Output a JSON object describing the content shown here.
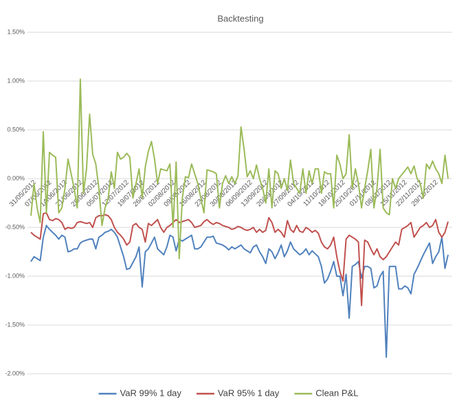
{
  "chart_data": {
    "type": "line",
    "title": "Backtesting",
    "categories": [
      "31/05/2012",
      null,
      null,
      null,
      null,
      "07/06/2012",
      null,
      null,
      null,
      null,
      "14/06/2012",
      null,
      null,
      null,
      null,
      "21/06/2012",
      null,
      null,
      null,
      null,
      "28/06/2012",
      null,
      null,
      null,
      null,
      "05/07/2012",
      null,
      null,
      null,
      null,
      "12/07/2012",
      null,
      null,
      null,
      null,
      "19/07/2012",
      null,
      null,
      null,
      null,
      "26/07/2012",
      null,
      null,
      null,
      null,
      "02/08/2012",
      null,
      null,
      null,
      null,
      "09/08/2012",
      null,
      null,
      null,
      null,
      "16/08/2012",
      null,
      null,
      null,
      null,
      "23/08/2012",
      null,
      null,
      null,
      null,
      "30/08/2012",
      null,
      null,
      null,
      null,
      "06/09/2012",
      null,
      null,
      null,
      null,
      "13/09/2012",
      null,
      null,
      null,
      null,
      "20/09/2012",
      null,
      null,
      null,
      null,
      "27/09/2012",
      null,
      null,
      null,
      null,
      "04/10/2012",
      null,
      null,
      null,
      null,
      "11/10/2012",
      null,
      null,
      null,
      null,
      "18/10/2012",
      null,
      null,
      null,
      null,
      "25/10/2012",
      null,
      null,
      null,
      null,
      "01/11/2012",
      null,
      null,
      null,
      null,
      "08/11/2012",
      null,
      null,
      null,
      null,
      "15/11/2012",
      null,
      null,
      null,
      null,
      "22/11/2012",
      null,
      null,
      null,
      null,
      "29/11/2012",
      null,
      null,
      null,
      null,
      null
    ],
    "series": [
      {
        "name": "VaR 99% 1 day",
        "color": "#4f81bd",
        "values": [
          -0.85,
          -0.8,
          -0.82,
          -0.84,
          -0.6,
          -0.48,
          -0.52,
          -0.55,
          -0.58,
          -0.62,
          -0.58,
          -0.6,
          -0.75,
          -0.74,
          -0.72,
          -0.72,
          -0.66,
          -0.64,
          -0.63,
          -0.62,
          -0.62,
          -0.72,
          -0.6,
          -0.58,
          -0.55,
          -0.54,
          -0.52,
          -0.55,
          -0.6,
          -0.7,
          -0.8,
          -0.93,
          -0.92,
          -0.86,
          -0.8,
          -0.7,
          -1.11,
          -0.75,
          -0.72,
          -0.66,
          -0.6,
          -0.72,
          -0.75,
          -0.78,
          -0.7,
          -0.58,
          -0.6,
          -0.74,
          -0.62,
          -0.64,
          -0.62,
          -0.6,
          -0.58,
          -0.72,
          -0.72,
          -0.7,
          -0.65,
          -0.6,
          -0.6,
          -0.59,
          -0.66,
          -0.67,
          -0.68,
          -0.7,
          -0.73,
          -0.7,
          -0.72,
          -0.7,
          -0.68,
          -0.72,
          -0.74,
          -0.76,
          -0.7,
          -0.68,
          -0.75,
          -0.8,
          -0.87,
          -0.72,
          -0.75,
          -0.82,
          -0.76,
          -0.68,
          -0.8,
          -0.74,
          -0.65,
          -0.72,
          -0.75,
          -0.78,
          -0.76,
          -0.72,
          -0.78,
          -0.74,
          -0.77,
          -0.8,
          -0.9,
          -1.07,
          -1.03,
          -0.95,
          -0.85,
          -1.0,
          -1.0,
          -1.2,
          -0.98,
          -1.43,
          -0.9,
          -0.88,
          -0.85,
          -1.02,
          -0.9,
          -0.9,
          -0.92,
          -1.12,
          -1.1,
          -1.0,
          -0.95,
          -1.83,
          -0.9,
          -0.9,
          -0.9,
          -1.13,
          -1.13,
          -1.1,
          -1.12,
          -1.18,
          -0.98,
          -0.92,
          -0.85,
          -0.78,
          -0.72,
          -0.66,
          -0.87,
          -0.8,
          -0.75,
          -0.6,
          -0.92,
          -0.78
        ]
      },
      {
        "name": "VaR 95% 1 day",
        "color": "#c0504d",
        "values": [
          -0.55,
          -0.58,
          -0.6,
          -0.62,
          -0.36,
          -0.35,
          -0.42,
          -0.43,
          -0.41,
          -0.42,
          -0.45,
          -0.52,
          -0.5,
          -0.51,
          -0.5,
          -0.45,
          -0.44,
          -0.45,
          -0.46,
          -0.45,
          -0.5,
          -0.4,
          -0.38,
          -0.38,
          -0.37,
          -0.38,
          -0.42,
          -0.5,
          -0.55,
          -0.58,
          -0.62,
          -0.68,
          -0.65,
          -0.48,
          -0.46,
          -0.5,
          -0.52,
          -0.65,
          -0.46,
          -0.48,
          -0.45,
          -0.42,
          -0.5,
          -0.55,
          -0.5,
          -0.48,
          -0.45,
          -0.42,
          -0.45,
          -0.44,
          -0.43,
          -0.42,
          -0.45,
          -0.5,
          -0.49,
          -0.48,
          -0.44,
          -0.42,
          -0.45,
          -0.47,
          -0.45,
          -0.46,
          -0.48,
          -0.49,
          -0.5,
          -0.52,
          -0.51,
          -0.49,
          -0.5,
          -0.52,
          -0.53,
          -0.52,
          -0.5,
          -0.55,
          -0.52,
          -0.55,
          -0.53,
          -0.4,
          -0.45,
          -0.55,
          -0.52,
          -0.55,
          -0.6,
          -0.43,
          -0.52,
          -0.55,
          -0.48,
          -0.54,
          -0.55,
          -0.5,
          -0.52,
          -0.55,
          -0.53,
          -0.56,
          -0.65,
          -0.7,
          -0.72,
          -0.68,
          -0.6,
          -0.8,
          -0.95,
          -1.05,
          -0.62,
          -0.58,
          -0.6,
          -0.62,
          -0.65,
          -1.3,
          -0.63,
          -0.65,
          -0.72,
          -0.78,
          -0.72,
          -0.8,
          -0.83,
          -0.8,
          -0.75,
          -0.7,
          -0.65,
          -0.68,
          -0.52,
          -0.5,
          -0.48,
          -0.45,
          -0.6,
          -0.55,
          -0.5,
          -0.48,
          -0.45,
          -0.5,
          -0.48,
          -0.42,
          -0.55,
          -0.6,
          -0.55,
          -0.44
        ]
      },
      {
        "name": "Clean P&L",
        "color": "#9bbb59",
        "values": [
          -0.38,
          -0.05,
          -0.3,
          -0.45,
          0.48,
          -0.35,
          0.27,
          0.24,
          0.22,
          -0.35,
          -0.3,
          -0.1,
          0.2,
          0.05,
          -0.1,
          -0.3,
          1.02,
          -0.15,
          0.1,
          0.66,
          0.25,
          0.15,
          -0.1,
          -0.48,
          -0.3,
          -0.2,
          0.07,
          -0.1,
          0.27,
          0.2,
          0.22,
          0.26,
          0.22,
          -0.2,
          -0.05,
          0.1,
          -0.2,
          0.12,
          0.28,
          0.38,
          0.2,
          -0.05,
          0.1,
          0.09,
          0.08,
          0.15,
          -0.5,
          0.17,
          -0.82,
          -0.2,
          0.02,
          0.01,
          0.15,
          0.05,
          -0.05,
          -0.2,
          -0.35,
          0.09,
          0.08,
          0.07,
          0.05,
          -0.3,
          -0.05,
          0.03,
          -0.05,
          0.02,
          -0.05,
          0.03,
          0.53,
          0.3,
          0.02,
          0.08,
          0.0,
          0.14,
          0.0,
          -0.1,
          -0.25,
          0.1,
          -0.3,
          0.08,
          0.05,
          -0.1,
          0.0,
          -0.12,
          0.19,
          -0.05,
          -0.1,
          -0.15,
          0.1,
          -0.15,
          0.08,
          -0.05,
          0.1,
          0.1,
          -0.15,
          0.07,
          0.05,
          0.05,
          -0.3,
          0.24,
          0.15,
          0.0,
          0.05,
          0.45,
          -0.1,
          0.1,
          -0.05,
          -0.3,
          -0.1,
          0.08,
          0.3,
          -0.3,
          -0.1,
          0.3,
          -0.3,
          -0.35,
          -0.37,
          0.0,
          -0.1,
          0.0,
          0.04,
          0.08,
          0.12,
          0.05,
          0.13,
          0.0,
          -0.05,
          -0.2,
          0.15,
          0.1,
          0.18,
          0.1,
          0.05,
          -0.05,
          0.24,
          0.0
        ]
      }
    ],
    "ylim": [
      -2,
      1.5
    ],
    "yticks": [
      {
        "value": -2,
        "label": "-2.00%"
      },
      {
        "value": -1.5,
        "label": "-1.50%"
      },
      {
        "value": -1,
        "label": "-1.00%"
      },
      {
        "value": -0.5,
        "label": "-0.50%"
      },
      {
        "value": 0,
        "label": "0.00%"
      },
      {
        "value": 0.5,
        "label": "0.50%"
      },
      {
        "value": 1,
        "label": "1.00%"
      },
      {
        "value": 1.5,
        "label": "1.50%"
      }
    ],
    "grid": true,
    "legend": "bottom"
  }
}
